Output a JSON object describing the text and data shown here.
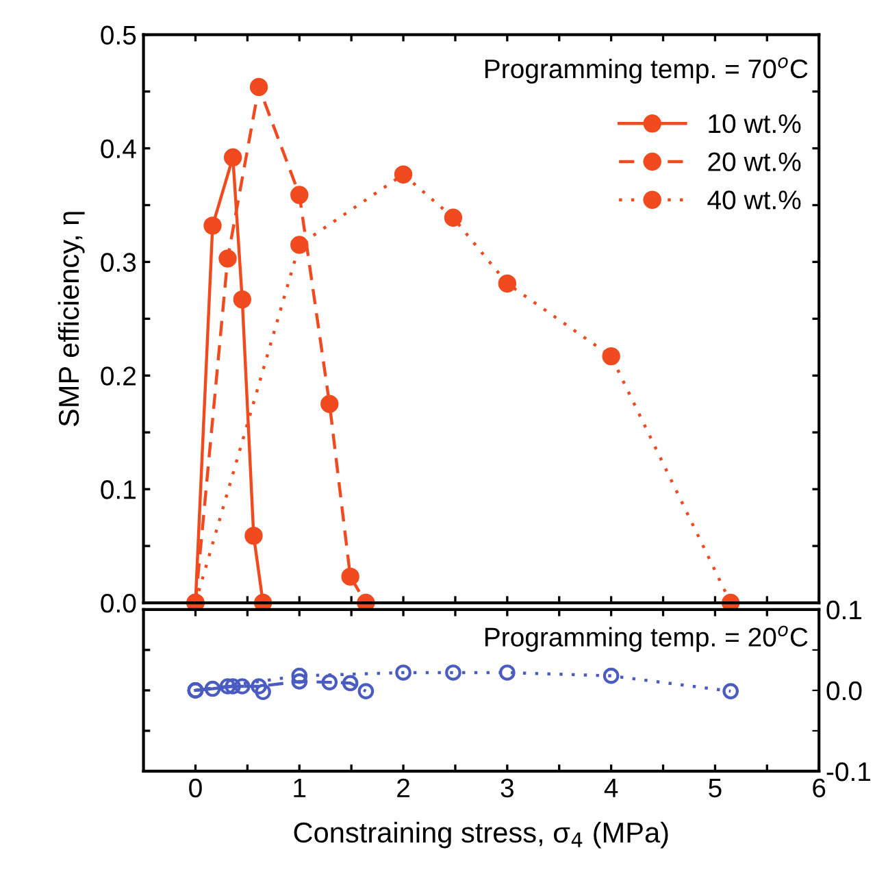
{
  "chart_data": [
    {
      "type": "line",
      "ylabel": "SMP efficiency, η",
      "annotations": [
        "Programming temp. = 70$^{o}$C"
      ],
      "marker": "circle",
      "legend": "top right",
      "tick_labels": "y",
      "xlim": [
        -0.5,
        6
      ],
      "xticks": [
        0,
        {
          "value": 0.5,
          "label": null
        },
        1,
        {
          "value": 1.5,
          "label": null
        },
        2,
        {
          "value": 2.5,
          "label": null
        },
        3,
        {
          "value": 3.5,
          "label": null
        },
        4,
        {
          "value": 4.5,
          "label": null
        },
        5,
        {
          "value": 5.5,
          "label": null
        },
        6
      ],
      "ylim": [
        0,
        0.5
      ],
      "yticks": [
        {
          "value": 0,
          "label": "0.0"
        },
        {
          "value": 0.05,
          "label": null
        },
        {
          "value": 0.1,
          "label": "0.1"
        },
        {
          "value": 0.15,
          "label": null
        },
        {
          "value": 0.2,
          "label": "0.2"
        },
        {
          "value": 0.25,
          "label": null
        },
        {
          "value": 0.3,
          "label": "0.3"
        },
        {
          "value": 0.35,
          "label": null
        },
        {
          "value": 0.4,
          "label": "0.4"
        },
        {
          "value": 0.45,
          "label": null
        },
        {
          "value": 0.5,
          "label": "0.5"
        }
      ],
      "series": [
        {
          "name": "10 wt.%",
          "color": "#f04a1e",
          "line_style": "solid",
          "x": [
            0,
            0.165,
            0.36,
            0.45,
            0.56,
            0.65
          ],
          "values": [
            0,
            0.332,
            0.392,
            0.267,
            0.059,
            0
          ]
        },
        {
          "name": "20 wt.%",
          "color": "#f04a1e",
          "line_style": "dashed",
          "x": [
            0,
            0.31,
            0.61,
            1.0,
            1.29,
            1.49,
            1.64
          ],
          "values": [
            0,
            0.303,
            0.454,
            0.359,
            0.175,
            0.023,
            0
          ]
        },
        {
          "name": "40 wt.%",
          "color": "#f04a1e",
          "line_style": "dotted",
          "x": [
            0,
            1.0,
            2.0,
            2.48,
            3.0,
            4.0,
            5.15
          ],
          "values": [
            0,
            0.315,
            0.377,
            0.339,
            0.281,
            0.217,
            0
          ]
        }
      ]
    },
    {
      "type": "line",
      "xlabel": "Constraining stress, σ$_{4}$ (MPa)",
      "annotations": [
        "Programming temp. = 20$^{o}$C"
      ],
      "marker": "circle",
      "xlim": [
        -0.5,
        6
      ],
      "xticks": [
        0,
        {
          "value": 0.5,
          "label": null
        },
        1,
        {
          "value": 1.5,
          "label": null
        },
        2,
        {
          "value": 2.5,
          "label": null
        },
        3,
        {
          "value": 3.5,
          "label": null
        },
        4,
        {
          "value": 4.5,
          "label": null
        },
        5,
        {
          "value": 5.5,
          "label": null
        },
        6
      ],
      "y2lim": [
        -0.1,
        0.1
      ],
      "y2ticks": [
        {
          "value": -0.1,
          "label": "-0.1"
        },
        {
          "value": -0.05,
          "label": null
        },
        {
          "value": 0,
          "label": "0.0"
        },
        {
          "value": 0.05,
          "label": null
        },
        {
          "value": 0.1,
          "label": "0.1"
        }
      ],
      "series": [
        {
          "color": "#4a5cc0",
          "axis": "y2",
          "line_style": "solid",
          "x": [
            0,
            0.165,
            0.36,
            0.45,
            0.56,
            0.65
          ],
          "values": [
            0,
            0.002,
            0.005,
            0.005,
            null,
            -0.002
          ]
        },
        {
          "color": "#4a5cc0",
          "axis": "y2",
          "line_style": "dashed",
          "x": [
            0,
            0.31,
            0.61,
            1.0,
            1.29,
            1.49,
            1.64
          ],
          "values": [
            0,
            0.005,
            0.005,
            0.011,
            0.01,
            0.009,
            -0.001
          ]
        },
        {
          "color": "#4a5cc0",
          "axis": "y2",
          "line_style": "dotted",
          "x": [
            0,
            1.0,
            2.0,
            2.48,
            3.0,
            4.0,
            5.15
          ],
          "values": [
            0,
            0.018,
            0.022,
            0.022,
            0.022,
            0.018,
            -0.001
          ]
        }
      ]
    }
  ]
}
